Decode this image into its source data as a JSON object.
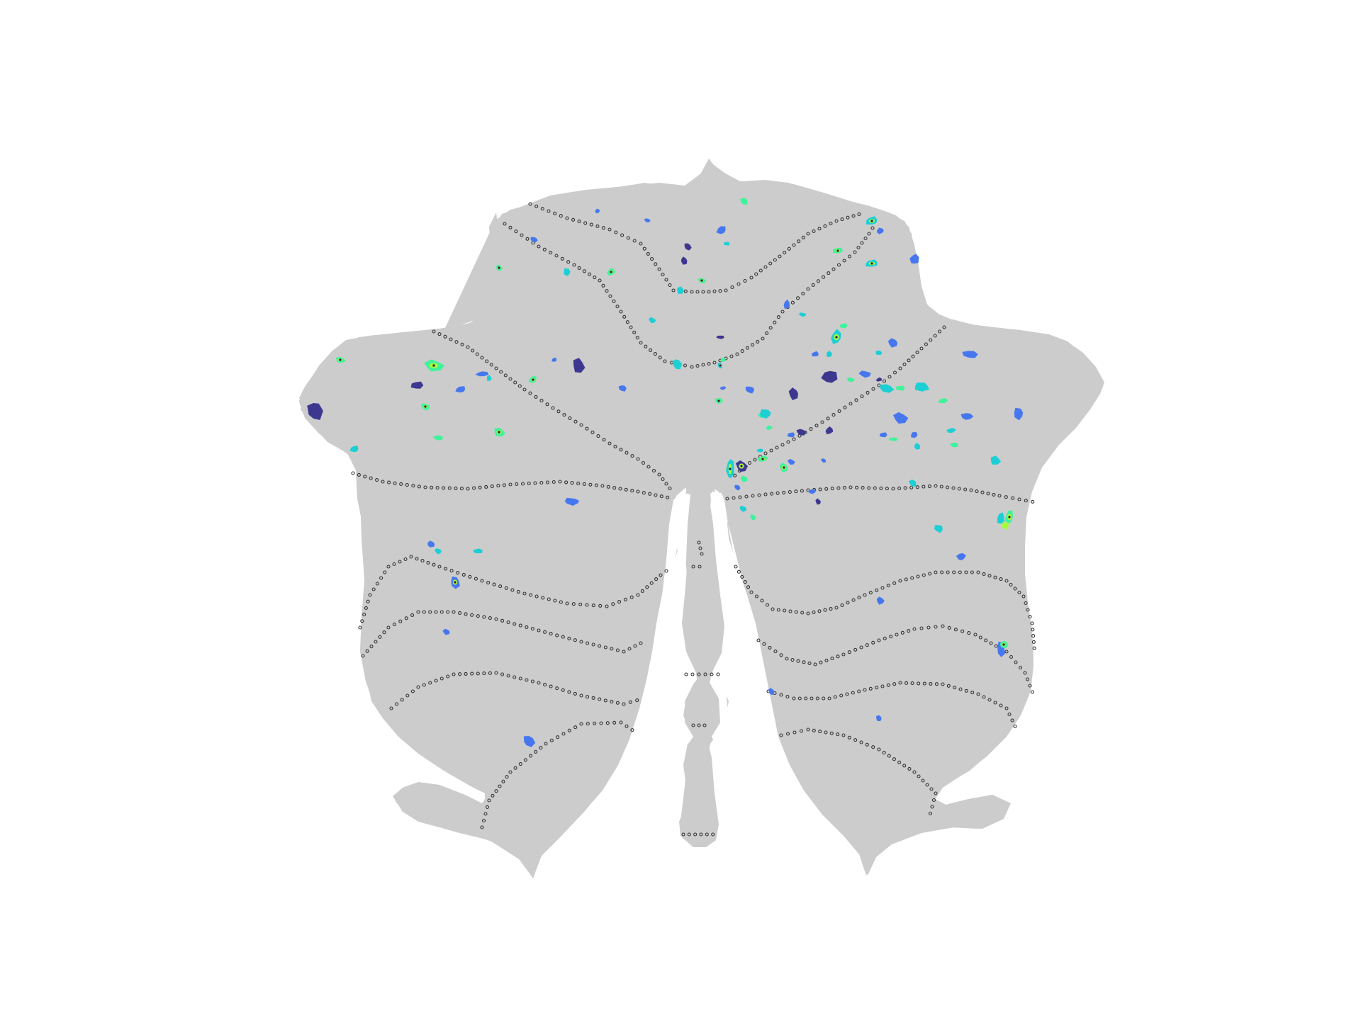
{
  "figure": {
    "kind": "cerebellar flatmap",
    "background_color": "#ffffff",
    "surface_color": "#cccccc",
    "boundary_style": "dotted",
    "boundary_color": "#333333",
    "colormap": [
      "#30123b",
      "#3e378f",
      "#4777ef",
      "#1bcfd4",
      "#3ef39a",
      "#a4fc3c",
      "#fbb938",
      "#7a0403"
    ],
    "colorbar": "none",
    "title": ""
  }
}
